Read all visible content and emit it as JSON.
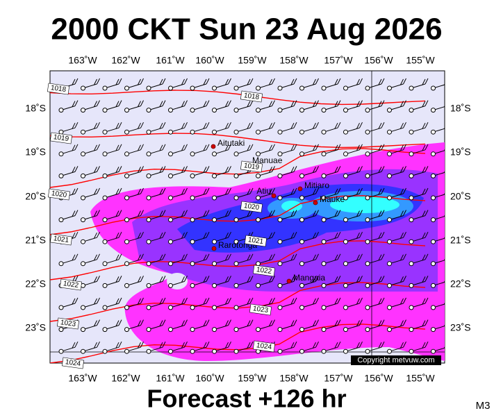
{
  "title": "2000 CKT Sun 23 Aug 2026",
  "footer": "Forecast +126 hr",
  "model": "M3",
  "copyright": "Copyright metvuw.com",
  "map": {
    "lon_labels": [
      "163˚W",
      "162˚W",
      "161˚W",
      "160˚W",
      "159˚W",
      "158˚W",
      "157˚W",
      "156˚W",
      "155˚W"
    ],
    "lat_labels": [
      "18˚S",
      "19˚S",
      "20˚S",
      "21˚S",
      "22˚S",
      "23˚S"
    ],
    "places": [
      "Aitutaki",
      "Manuae",
      "Atiu",
      "Mitiaro",
      "Mauke",
      "Rarotonga",
      "Mangaia"
    ],
    "isobar_labels": [
      "1018",
      "1018",
      "1019",
      "1019",
      "1020",
      "1020",
      "1021",
      "1021",
      "1022",
      "1022",
      "1023",
      "1023",
      "1024",
      "1024"
    ]
  }
}
